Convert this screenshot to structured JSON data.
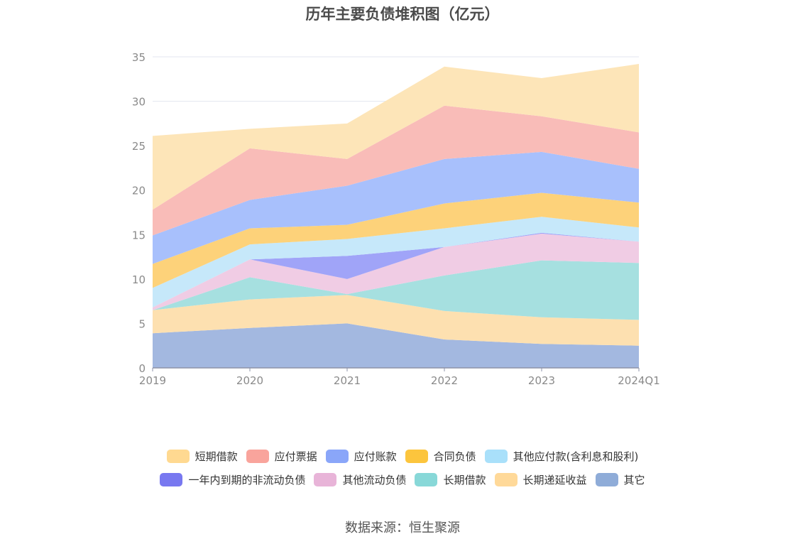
{
  "title": "历年主要负债堆积图（亿元）",
  "source": "数据来源：恒生聚源",
  "chart_data": {
    "type": "area",
    "stacked": true,
    "title": "历年主要负债堆积图（亿元）",
    "categories": [
      "2019",
      "2020",
      "2021",
      "2022",
      "2023",
      "2024Q1"
    ],
    "yticks": [
      "0",
      "5",
      "10",
      "15",
      "20",
      "25",
      "30",
      "35"
    ],
    "ylim": [
      0,
      35
    ],
    "grid": true,
    "legend_position": "bottom",
    "series": [
      {
        "name": "其它",
        "color": "#a3b8e0",
        "values": [
          3.9,
          4.5,
          5.0,
          3.2,
          2.7,
          2.5
        ]
      },
      {
        "name": "长期递延收益",
        "color": "#fde0b0",
        "values": [
          2.6,
          3.2,
          3.2,
          3.2,
          3.0,
          2.9
        ]
      },
      {
        "name": "长期借款",
        "color": "#a6e0e0",
        "values": [
          0.0,
          2.5,
          0.1,
          4.0,
          6.4,
          6.4
        ]
      },
      {
        "name": "其他流动负债",
        "color": "#f0cce4",
        "values": [
          0.3,
          2.0,
          1.7,
          3.2,
          3.0,
          2.4
        ]
      },
      {
        "name": "一年内到期的非流动负债",
        "color": "#a0a4f8",
        "values": [
          0.0,
          0.0,
          2.6,
          0.0,
          0.1,
          0.0
        ]
      },
      {
        "name": "其他应付款(含利息和股利)",
        "color": "#c6e8fa",
        "values": [
          2.2,
          1.7,
          1.9,
          2.1,
          1.8,
          1.6
        ]
      },
      {
        "name": "合同负债",
        "color": "#fdd27a",
        "values": [
          2.7,
          1.8,
          1.6,
          2.8,
          2.7,
          2.8
        ]
      },
      {
        "name": "应付账款",
        "color": "#a8c0fc",
        "values": [
          3.2,
          3.2,
          4.4,
          5.0,
          4.6,
          3.8
        ]
      },
      {
        "name": "应付票据",
        "color": "#f9bcb8",
        "values": [
          2.9,
          5.8,
          3.0,
          6.0,
          4.0,
          4.1
        ]
      },
      {
        "name": "短期借款",
        "color": "#fde5b8",
        "values": [
          8.3,
          2.2,
          4.0,
          4.4,
          4.3,
          7.7
        ]
      }
    ]
  },
  "legend": {
    "row1": [
      {
        "label": "短期借款",
        "color": "#ffd991"
      },
      {
        "label": "应付票据",
        "color": "#f9a49c"
      },
      {
        "label": "应付账款",
        "color": "#8aa6f9"
      },
      {
        "label": "合同负债",
        "color": "#fcc53d"
      },
      {
        "label": "其他应付款(含利息和股利)",
        "color": "#a9e0fa"
      }
    ],
    "row2": [
      {
        "label": "一年内到期的非流动负债",
        "color": "#7878f0"
      },
      {
        "label": "其他流动负债",
        "color": "#e8b4d8"
      },
      {
        "label": "长期借款",
        "color": "#88d8d8"
      },
      {
        "label": "长期递延收益",
        "color": "#ffd999"
      },
      {
        "label": "其它",
        "color": "#8facd8"
      }
    ]
  }
}
